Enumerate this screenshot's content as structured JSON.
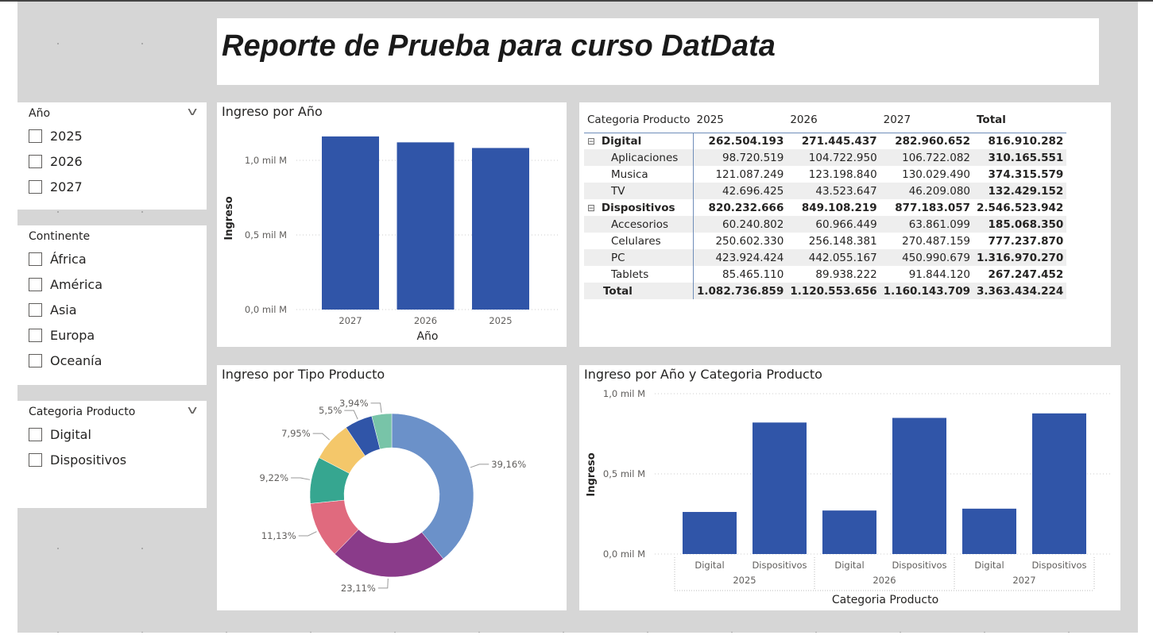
{
  "report_title": "Reporte de Prueba para curso DatData",
  "slicers": [
    {
      "title": "Año",
      "dropdown": true,
      "items": [
        "2025",
        "2026",
        "2027"
      ]
    },
    {
      "title": "Continente",
      "dropdown": false,
      "items": [
        "África",
        "América",
        "Asia",
        "Europa",
        "Oceanía"
      ]
    },
    {
      "title": "Categoria Producto",
      "dropdown": true,
      "items": [
        "Digital",
        "Dispositivos"
      ]
    }
  ],
  "matrix": {
    "headers": [
      "Categoria Producto",
      "2025",
      "2026",
      "2027",
      "Total"
    ],
    "rows": [
      {
        "label": "Digital",
        "level": 0,
        "values": [
          "262.504.193",
          "271.445.437",
          "282.960.652",
          "816.910.282"
        ]
      },
      {
        "label": "Aplicaciones",
        "level": 1,
        "values": [
          "98.720.519",
          "104.722.950",
          "106.722.082",
          "310.165.551"
        ]
      },
      {
        "label": "Musica",
        "level": 1,
        "values": [
          "121.087.249",
          "123.198.840",
          "130.029.490",
          "374.315.579"
        ]
      },
      {
        "label": "TV",
        "level": 1,
        "values": [
          "42.696.425",
          "43.523.647",
          "46.209.080",
          "132.429.152"
        ]
      },
      {
        "label": "Dispositivos",
        "level": 0,
        "values": [
          "820.232.666",
          "849.108.219",
          "877.183.057",
          "2.546.523.942"
        ]
      },
      {
        "label": "Accesorios",
        "level": 1,
        "values": [
          "60.240.802",
          "60.966.449",
          "63.861.099",
          "185.068.350"
        ]
      },
      {
        "label": "Celulares",
        "level": 1,
        "values": [
          "250.602.330",
          "256.148.381",
          "270.487.159",
          "777.237.870"
        ]
      },
      {
        "label": "PC",
        "level": 1,
        "values": [
          "423.924.424",
          "442.055.167",
          "450.990.679",
          "1.316.970.270"
        ]
      },
      {
        "label": "Tablets",
        "level": 1,
        "values": [
          "85.465.110",
          "89.938.222",
          "91.844.120",
          "267.247.452"
        ]
      },
      {
        "label": "Total",
        "level": "total",
        "values": [
          "1.082.736.859",
          "1.120.553.656",
          "1.160.143.709",
          "3.363.434.224"
        ]
      }
    ],
    "expand_icon": "minus-square-icon"
  },
  "chart_data": [
    {
      "type": "bar",
      "title": "Ingreso por Año",
      "xlabel": "Año",
      "ylabel": "Ingreso",
      "categories": [
        "2027",
        "2026",
        "2025"
      ],
      "values": [
        1.160143709,
        1.120553656,
        1.082736859
      ],
      "unit": "mil M",
      "yticks": [
        "0,0 mil M",
        "0,5 mil M",
        "1,0 mil M"
      ],
      "ylim": [
        0,
        1.0
      ],
      "grid": true,
      "color": "#3055a8"
    },
    {
      "type": "pie",
      "title": "Ingreso por Tipo Producto",
      "donut": true,
      "values": [
        39.16,
        23.11,
        11.13,
        9.22,
        7.95,
        5.5,
        3.94
      ],
      "labels": [
        "39,16%",
        "23,11%",
        "11,13%",
        "9,22%",
        "7,95%",
        "5,5%",
        "3,94%"
      ],
      "colors": [
        "#6b91c9",
        "#8a3b8a",
        "#e06a7e",
        "#36a690",
        "#f4c76a",
        "#3055a8",
        "#78c4a8"
      ]
    },
    {
      "type": "bar",
      "title": "Ingreso por Año y Categoria Producto",
      "xlabel": "Categoria Producto",
      "ylabel": "Ingreso",
      "groups": [
        "2025",
        "2026",
        "2027"
      ],
      "categories": [
        "Digital",
        "Dispositivos"
      ],
      "values": [
        [
          0.262504193,
          0.820232666
        ],
        [
          0.271445437,
          0.849108219
        ],
        [
          0.282960652,
          0.877183057
        ]
      ],
      "unit": "mil M",
      "yticks": [
        "0,0 mil M",
        "0,5 mil M",
        "1,0 mil M"
      ],
      "ylim": [
        0,
        1.0
      ],
      "grid": true,
      "color": "#3055a8"
    }
  ]
}
